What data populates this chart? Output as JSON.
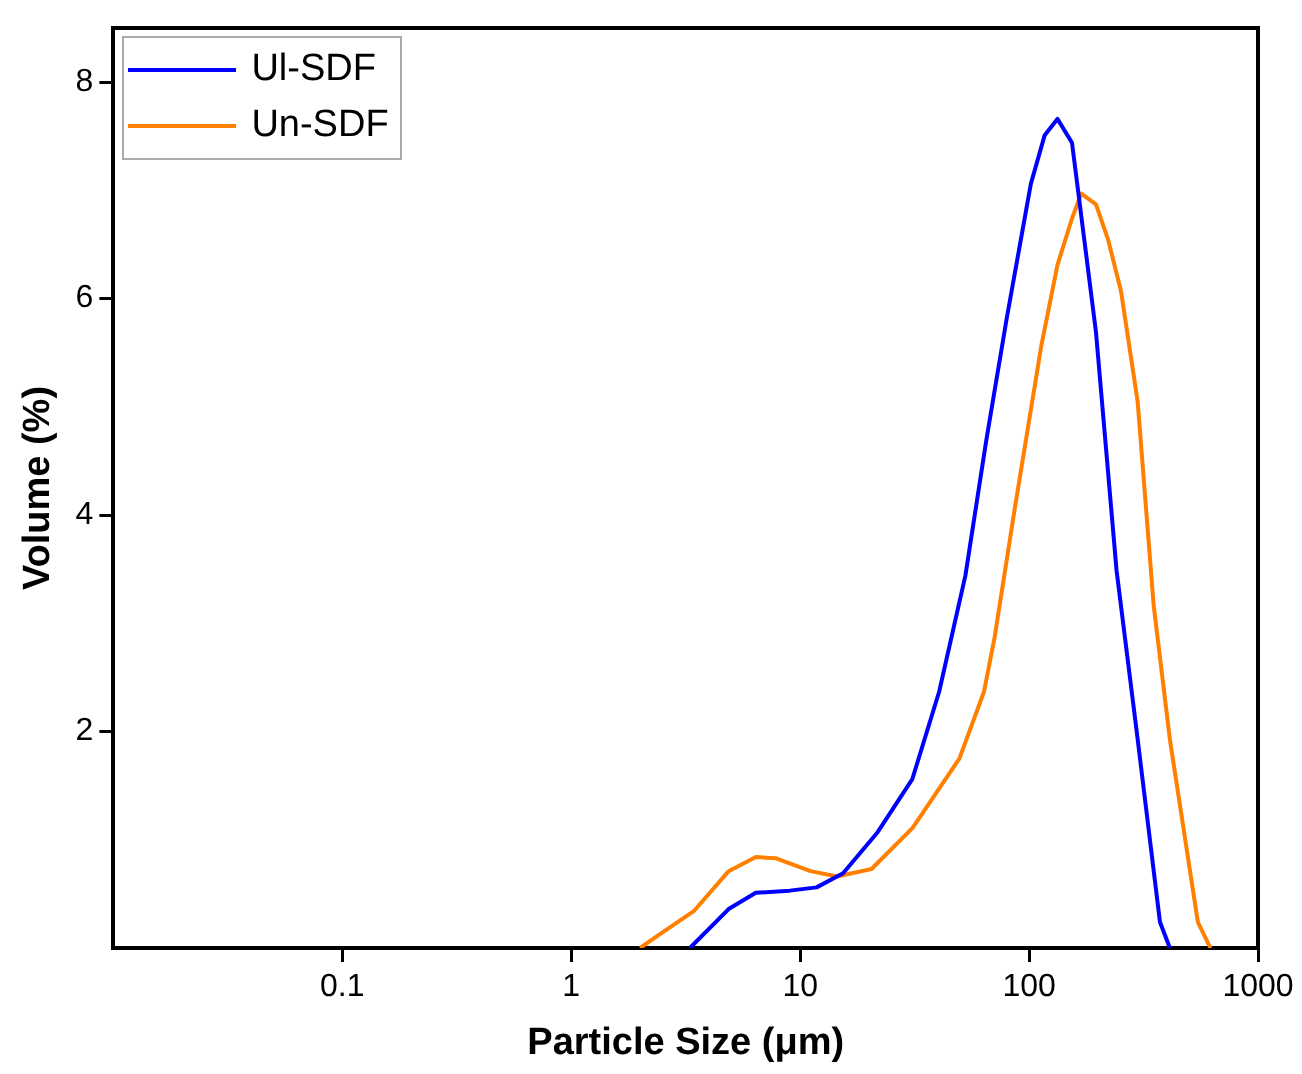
{
  "chart_data": {
    "type": "line",
    "xlabel": "Particle Size (μm)",
    "ylabel": "Volume (%)",
    "xlim": [
      0.01,
      1000
    ],
    "xticks": [
      0.1,
      1,
      10,
      100,
      1000
    ],
    "ylim": [
      0,
      8.5
    ],
    "yticks": [
      2,
      4,
      6,
      8
    ],
    "log": "x",
    "grid": false,
    "legend": "top left",
    "marker": "none",
    "line_style": "solid",
    "series": [
      {
        "name": "Ul-SDF",
        "color": "#0000ff",
        "x": [
          3.3,
          4.87,
          6.4,
          9.0,
          11.8,
          15.4,
          21.8,
          30.9,
          40.5,
          52.7,
          64.9,
          79.6,
          101.8,
          117,
          133,
          154,
          196,
          241,
          298,
          373,
          412
        ],
        "values": [
          0,
          0.36,
          0.51,
          0.53,
          0.56,
          0.69,
          1.07,
          1.56,
          2.37,
          3.44,
          4.68,
          5.8,
          7.06,
          7.51,
          7.66,
          7.44,
          5.69,
          3.49,
          1.93,
          0.24,
          0
        ]
      },
      {
        "name": "Un-SDF",
        "color": "#ff8000",
        "x": [
          2.0,
          2.37,
          3.43,
          4.87,
          6.4,
          7.8,
          11.1,
          14.5,
          20.5,
          31,
          49.6,
          63.6,
          70.7,
          86.6,
          113,
          133,
          154,
          169,
          196,
          221,
          252,
          298,
          350,
          412,
          546,
          620
        ],
        "values": [
          0,
          0.11,
          0.34,
          0.71,
          0.84,
          0.83,
          0.71,
          0.66,
          0.73,
          1.11,
          1.75,
          2.37,
          2.87,
          4.06,
          5.56,
          6.31,
          6.74,
          6.97,
          6.87,
          6.55,
          6.07,
          5.05,
          3.17,
          1.93,
          0.24,
          0
        ]
      }
    ]
  }
}
